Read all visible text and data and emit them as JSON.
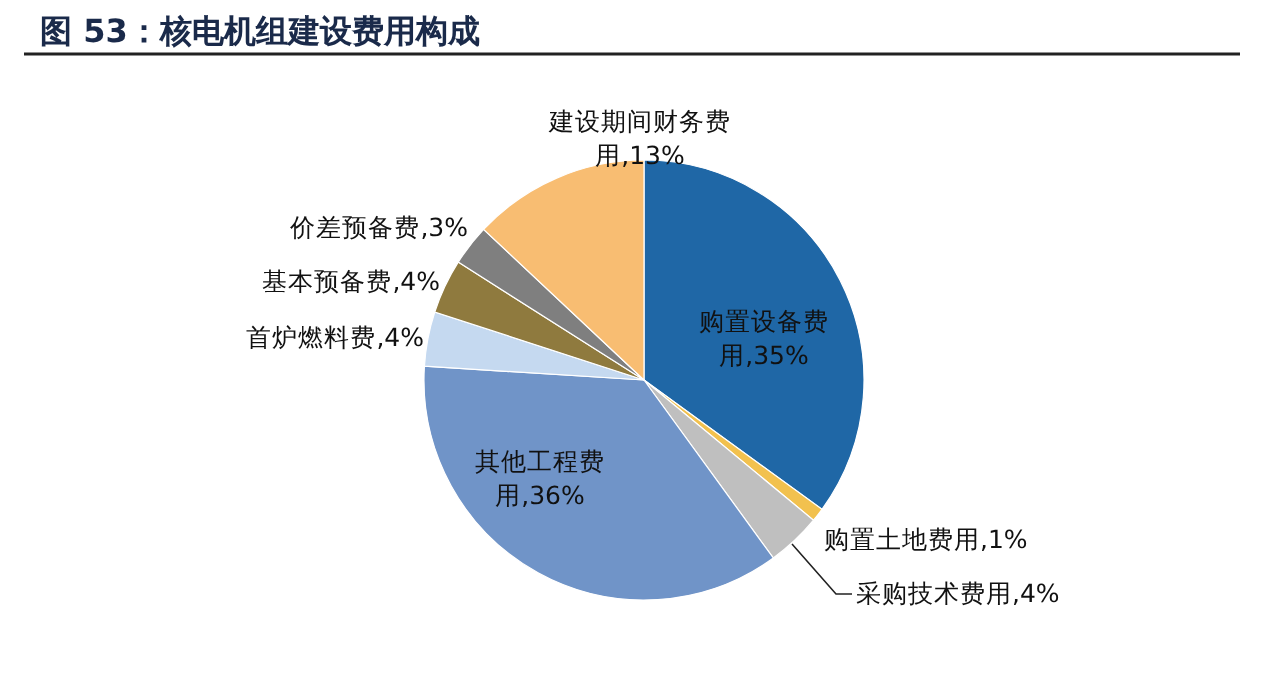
{
  "chart_data": {
    "type": "pie",
    "title": "图 53：核电机组建设费用构成",
    "categories": [
      "购置设备费用",
      "购置土地费用",
      "采购技术费用",
      "其他工程费用",
      "首炉燃料费",
      "基本预备费",
      "价差预备费",
      "建设期间财务费用"
    ],
    "values": [
      35,
      1,
      4,
      36,
      4,
      4,
      3,
      13
    ],
    "value_labels": [
      "35%",
      "1%",
      "4%",
      "36%",
      "4%",
      "4%",
      "3%",
      "13%"
    ],
    "colors": [
      "#1f67a6",
      "#f2c14e",
      "#bfbfbf",
      "#7094c8",
      "#c5d9f0",
      "#8f7a3e",
      "#7f7f7f",
      "#f8bd72"
    ]
  }
}
